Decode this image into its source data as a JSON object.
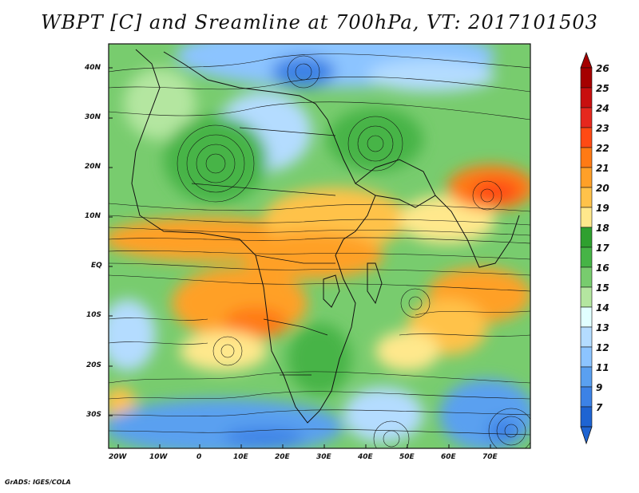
{
  "title": "WBPT [C] and Sreamline at 700hPa, VT: 2017101503",
  "map": {
    "lon_labels": [
      "20W",
      "10W",
      "0",
      "10E",
      "20E",
      "30E",
      "40E",
      "50E",
      "60E",
      "70E"
    ],
    "lat_labels": [
      "40N",
      "30N",
      "20N",
      "10N",
      "EQ",
      "10S",
      "20S",
      "30S"
    ],
    "field": "WBPT",
    "units": "C",
    "level": "700hPa",
    "valid_time": "2017101503",
    "overlay": "streamlines"
  },
  "colorbar": {
    "labels": [
      "26",
      "25",
      "24",
      "23",
      "22",
      "21",
      "20",
      "19",
      "18",
      "17",
      "16",
      "15",
      "14",
      "13",
      "12",
      "11",
      "9",
      "7"
    ],
    "colors": [
      "#a50000",
      "#c80f0f",
      "#e6281e",
      "#ff4a14",
      "#ff7a14",
      "#ffa028",
      "#ffc24a",
      "#ffe88c",
      "#2fa02f",
      "#46b446",
      "#78cc6e",
      "#b4e6a0",
      "#e1ffff",
      "#b4dcff",
      "#8cc4ff",
      "#5aa0f0",
      "#3c82e6",
      "#1e64d2"
    ]
  },
  "credit": "GrADS: IGES/COLA"
}
